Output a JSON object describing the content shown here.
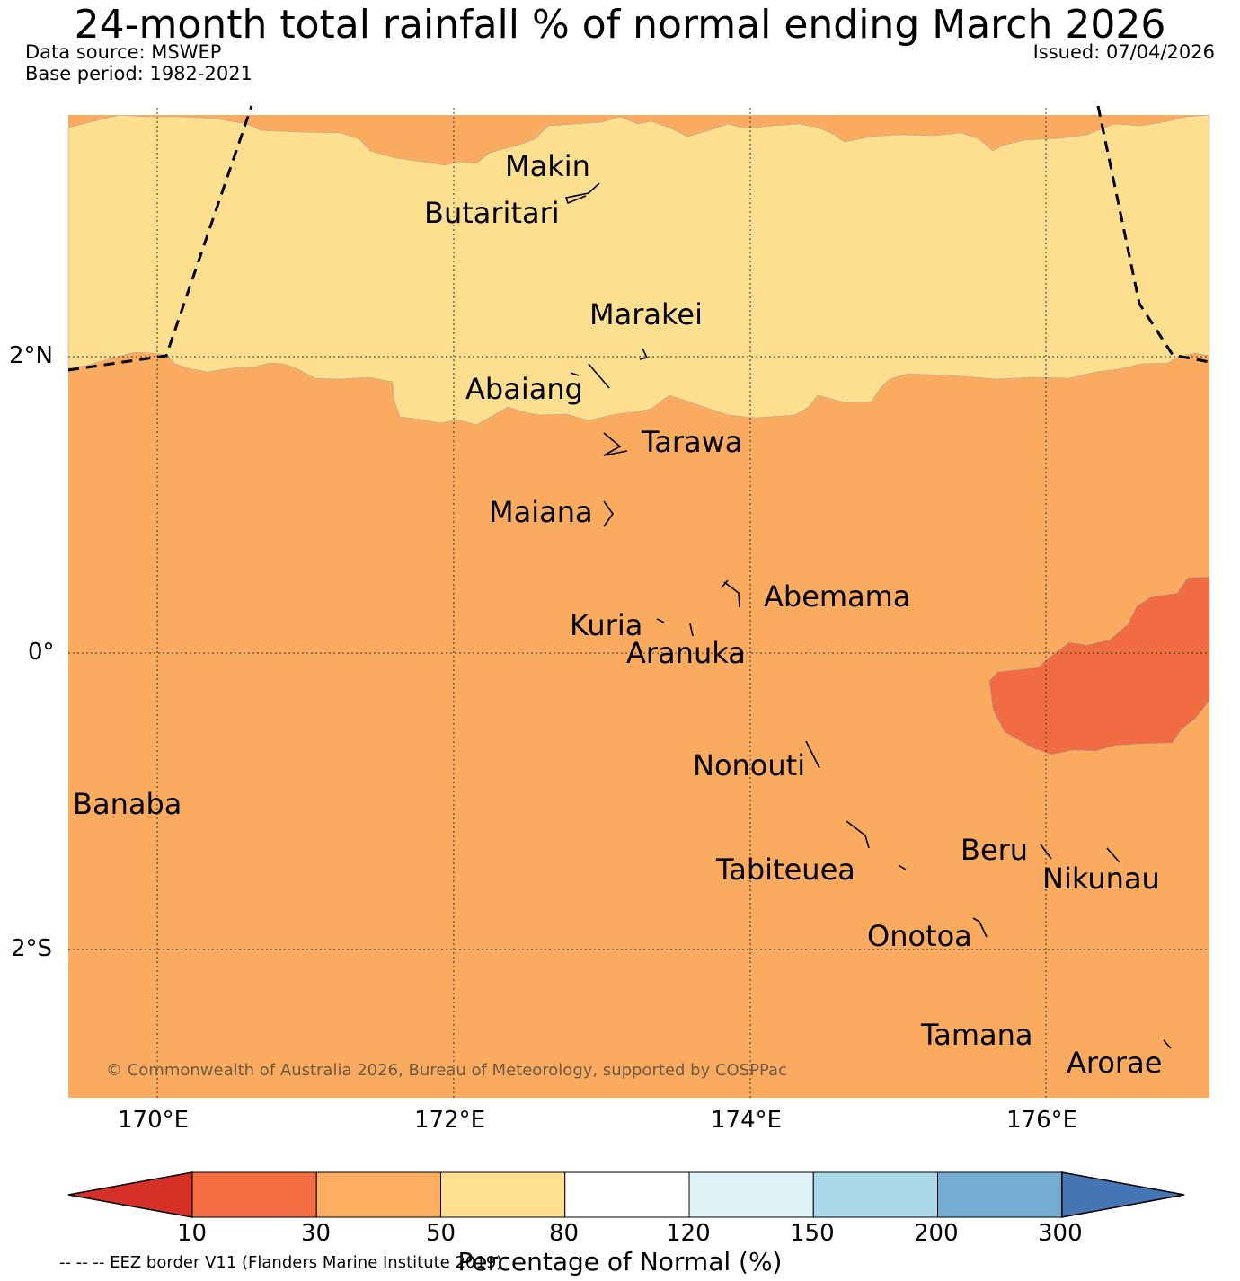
{
  "header": {
    "title": "24-month total rainfall % of normal ending March 2026",
    "data_source": "Data source: MSWEP",
    "base_period": "Base period: 1982-2021",
    "issued": "Issued: 07/04/2026"
  },
  "map": {
    "lon_ticks": [
      "170°E",
      "172°E",
      "174°E",
      "176°E"
    ],
    "lat_ticks": [
      "2°N",
      "0°",
      "2°S"
    ],
    "islands": [
      "Makin",
      "Butaritari",
      "Marakei",
      "Abaiang",
      "Tarawa",
      "Maiana",
      "Abemama",
      "Kuria",
      "Aranuka",
      "Nonouti",
      "Banaba",
      "Tabiteuea",
      "Beru",
      "Nikunau",
      "Onotoa",
      "Tamana",
      "Arorae"
    ],
    "copyright": "© Commonwealth of Australia 2026, Bureau of Meteorology, supported by COSPPac",
    "region_classes": [
      "50-80",
      "30-50",
      "10-30"
    ]
  },
  "colorbar": {
    "colors": [
      "#d73027",
      "#f46d43",
      "#fdae61",
      "#fee090",
      "#ffffff",
      "#e0f3f8",
      "#abd9e9",
      "#74add1",
      "#4575b4"
    ],
    "ticks": [
      "10",
      "30",
      "50",
      "80",
      "120",
      "150",
      "200",
      "300"
    ],
    "label": "Percentage of Normal (%)"
  },
  "footer": {
    "eez_note": "-- -- -- EEZ border V11 (Flanders Marine Institute 2019)"
  }
}
